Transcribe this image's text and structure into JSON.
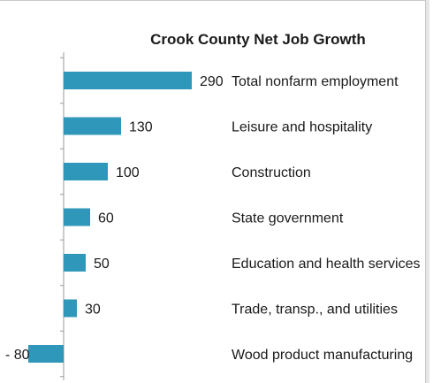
{
  "chart_data": {
    "type": "bar",
    "orientation": "horizontal",
    "title": "Crook County Net Job Growth",
    "categories": [
      "Total nonfarm employment",
      "Leisure and hospitality",
      "Construction",
      "State government",
      "Education and health services",
      "Trade, transp., and utilities",
      "Wood product manufacturing"
    ],
    "values": [
      290,
      130,
      100,
      60,
      50,
      30,
      -80
    ],
    "value_labels": [
      "290",
      "130",
      "100",
      "60",
      "50",
      "30",
      "- 80"
    ],
    "xlabel": "",
    "ylabel": "",
    "xlim": [
      -80,
      290
    ],
    "grid": false,
    "legend": "none",
    "bar_color": "#2f97b9"
  }
}
